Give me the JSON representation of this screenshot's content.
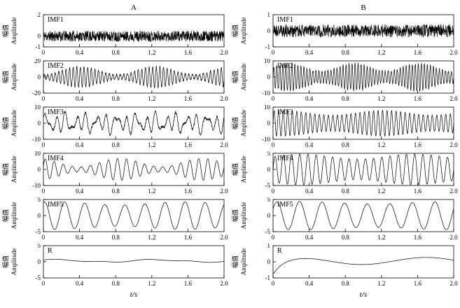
{
  "chart_data": {
    "type": "line",
    "title": "",
    "layout": "two columns (A, B) of six stacked time-series panels: IMF1-IMF5 and residual R, EMD decomposition style, grid off, no legend",
    "line_color": "#000000",
    "x": {
      "label": "t/s",
      "range": [
        0,
        2
      ],
      "tick_values": [
        0,
        0.4,
        0.8,
        1.2,
        1.6,
        2.0
      ],
      "tick_labels": [
        "0",
        "0.4",
        "0.8",
        "1.2",
        "1.6",
        "2.0"
      ]
    },
    "ylabel_cn": "幅值",
    "ylabel_en": "Amplitude",
    "note": "waveforms are dense sampled signals; each panel's series is described parametrically (offset + decay + sinusoidal components + AM carrier + uniform noise), sampled at 900 points over t in [0,2] s",
    "columns": [
      {
        "title": "A",
        "panels": [
          {
            "label": "IMF1",
            "ylim": [
              -1,
              2
            ],
            "yticks": [
              2,
              0,
              -1
            ],
            "seed": 11,
            "signal": {
              "noise": 0.5
            },
            "description": "broadband noise around 0, approx ±0.5 amplitude"
          },
          {
            "label": "IMF2",
            "ylim": [
              -20,
              20
            ],
            "yticks": [
              20,
              0,
              -20
            ],
            "seed": 12,
            "signal": {
              "noise": 1.2,
              "am": {
                "f": 25,
                "base": 8,
                "depth": 5,
                "mf": 1.2,
                "mph": -1.5,
                "ph": 0
              }
            },
            "description": "≈25 Hz oscillation, amplitude modulated 3–13, peaks near ±14"
          },
          {
            "label": "IMF3",
            "ylim": [
              -10,
              10
            ],
            "yticks": [
              10,
              0,
              -10
            ],
            "seed": 13,
            "signal": {
              "noise": 0.8,
              "components": [
                {
                  "f": 9,
                  "a": 3.5,
                  "ph": 0
                },
                {
                  "f": 13,
                  "a": 2.8,
                  "ph": 1.3
                },
                {
                  "f": 5,
                  "a": 2,
                  "ph": 0.7
                }
              ]
            },
            "description": "irregular multi-frequency oscillation, peaks ≈ ±8"
          },
          {
            "label": "IMF4",
            "ylim": [
              -10,
              10
            ],
            "yticks": [
              10,
              0,
              -10
            ],
            "seed": 14,
            "signal": {
              "am": {
                "f": 10,
                "base": 4.2,
                "depth": 2.6,
                "mf": 1.1,
                "mph": 2,
                "ph": 0.3
              }
            },
            "description": "≈10 Hz amplitude-modulated oscillation, envelope 1.6–6.8"
          },
          {
            "label": "IMF5",
            "ylim": [
              -5,
              5
            ],
            "yticks": [
              5,
              0,
              -5
            ],
            "seed": 15,
            "signal": {
              "am": {
                "f": 4.5,
                "base": 3.8,
                "depth": 0.5,
                "mf": 0.7,
                "mph": 1,
                "ph": 1.2
              }
            },
            "description": "smooth ≈4.5 Hz sinusoid, amplitude ≈ ±4 (9 cycles over 2 s)"
          },
          {
            "label": "R",
            "ylim": [
              -5,
              5
            ],
            "yticks": [
              5,
              0,
              -5
            ],
            "seed": 16,
            "signal": {
              "offset": 0.3,
              "components": [
                {
                  "f": 0.9,
                  "a": 0.35,
                  "ph": 0.8
                },
                {
                  "f": 2,
                  "a": 0.15,
                  "ph": 0
                }
              ]
            },
            "description": "residual trend, nearly flat slightly above 0"
          }
        ]
      },
      {
        "title": "B",
        "panels": [
          {
            "label": "IMF1",
            "ylim": [
              -1,
              1
            ],
            "yticks": [
              1,
              0,
              -1
            ],
            "seed": 21,
            "signal": {
              "noise": 0.4
            },
            "description": "broadband noise around 0, approx ±0.4 amplitude"
          },
          {
            "label": "IMF2",
            "ylim": [
              -10,
              10
            ],
            "yticks": [
              10,
              0,
              -10
            ],
            "seed": 22,
            "signal": {
              "noise": 0.8,
              "am": {
                "f": 30,
                "base": 6,
                "depth": 2.5,
                "mf": 1.4,
                "mph": 0,
                "ph": 0
              }
            },
            "description": "dense ≈30 Hz oscillation, envelope 3.5–8.5"
          },
          {
            "label": "IMF3",
            "ylim": [
              -10,
              10
            ],
            "yticks": [
              10,
              0,
              -10
            ],
            "seed": 23,
            "signal": {
              "am": {
                "f": 20,
                "base": 6.5,
                "depth": 1.5,
                "mf": 0.9,
                "mph": 1,
                "ph": 0
              }
            },
            "description": "regular ≈20 Hz oscillation, envelope 5–8"
          },
          {
            "label": "IMF4",
            "ylim": [
              -5,
              5
            ],
            "yticks": [
              5,
              0,
              -5
            ],
            "seed": 24,
            "signal": {
              "am": {
                "f": 11,
                "base": 4,
                "depth": 0.8,
                "mf": 0.8,
                "mph": 0,
                "ph": 0
              }
            },
            "description": "regular ≈11 Hz sinusoid, amplitude ≈ ±4"
          },
          {
            "label": "IMF5",
            "ylim": [
              -5,
              5
            ],
            "yticks": [
              5,
              0,
              -5
            ],
            "seed": 25,
            "signal": {
              "am": {
                "f": 4,
                "base": 4,
                "depth": 0.4,
                "mf": 0.6,
                "mph": 0.5,
                "ph": 0.5
              }
            },
            "description": "smooth ≈4 Hz sinusoid, amplitude ≈ ±4 (8 cycles over 2 s)"
          },
          {
            "label": "R",
            "ylim": [
              -1,
              1
            ],
            "yticks": [
              1,
              0,
              -1
            ],
            "seed": 26,
            "signal": {
              "offset": 0.05,
              "decay": {
                "amp": -0.9,
                "tau": 0.12
              },
              "components": [
                {
                  "f": 0.7,
                  "a": 0.22,
                  "ph": 0.4
                }
              ]
            },
            "description": "residual: starts near -0.75, rises and levels off near 0.1"
          }
        ]
      }
    ]
  }
}
